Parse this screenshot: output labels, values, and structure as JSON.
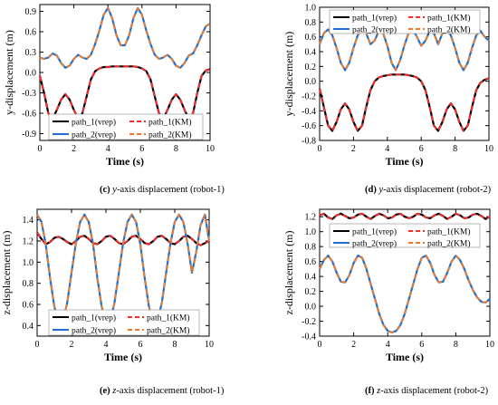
{
  "chart_data": [
    {
      "type": "line",
      "panel": "c",
      "caption_label": "(c)",
      "caption_axis": "y",
      "caption_text": "-axis displacement (robot-1)",
      "xlabel": "Time (s)",
      "ylabel": "y-displacement (m)",
      "xlim": [
        0,
        10
      ],
      "ylim": [
        -1.0,
        1.0
      ],
      "xticks": [
        0,
        2,
        4,
        6,
        8,
        10
      ],
      "yticks": [
        -0.9,
        -0.6,
        -0.3,
        0.0,
        0.3,
        0.6,
        0.9
      ],
      "ytick_labels": [
        "-0.9",
        "-0.6",
        "-0.3",
        "0.0",
        "0.3",
        "0.6",
        "0.9"
      ],
      "legend_position": "bottom-center",
      "legend": [
        "path_1(vrep)",
        "path_1(KM)",
        "path_2(vrep)",
        "path_2(KM)"
      ],
      "x": [
        0,
        0.25,
        0.5,
        0.75,
        1,
        1.25,
        1.5,
        1.75,
        2,
        2.25,
        2.5,
        2.75,
        3,
        3.25,
        3.5,
        3.75,
        4,
        4.25,
        4.5,
        4.75,
        5,
        5.25,
        5.5,
        5.75,
        6,
        6.25,
        6.5,
        6.75,
        7,
        7.25,
        7.5,
        7.75,
        8,
        8.25,
        8.5,
        8.75,
        9,
        9.25,
        9.5,
        9.75,
        10
      ],
      "series": [
        {
          "name": "path_1(vrep)",
          "color": "#000000",
          "style": "solid",
          "values": [
            -0.05,
            -0.3,
            -0.6,
            -0.68,
            -0.55,
            -0.4,
            -0.32,
            -0.4,
            -0.55,
            -0.68,
            -0.6,
            -0.35,
            -0.1,
            0.02,
            0.06,
            0.08,
            0.08,
            0.09,
            0.09,
            0.09,
            0.09,
            0.09,
            0.09,
            0.08,
            0.06,
            0.02,
            -0.1,
            -0.35,
            -0.6,
            -0.68,
            -0.55,
            -0.4,
            -0.32,
            -0.4,
            -0.55,
            -0.68,
            -0.6,
            -0.3,
            -0.05,
            0.03,
            0.05
          ]
        },
        {
          "name": "path_1(KM)",
          "color": "#ff2a2a",
          "style": "dashed",
          "values": [
            -0.05,
            -0.3,
            -0.6,
            -0.68,
            -0.55,
            -0.4,
            -0.32,
            -0.4,
            -0.55,
            -0.68,
            -0.6,
            -0.35,
            -0.1,
            0.02,
            0.06,
            0.08,
            0.08,
            0.09,
            0.09,
            0.09,
            0.09,
            0.09,
            0.09,
            0.08,
            0.06,
            0.02,
            -0.1,
            -0.35,
            -0.6,
            -0.68,
            -0.55,
            -0.4,
            -0.32,
            -0.4,
            -0.55,
            -0.68,
            -0.6,
            -0.3,
            -0.05,
            0.03,
            0.05
          ]
        },
        {
          "name": "path_2(vrep)",
          "color": "#1f6fd0",
          "style": "solid",
          "values": [
            0.22,
            0.2,
            0.22,
            0.28,
            0.25,
            0.14,
            0.07,
            0.1,
            0.2,
            0.26,
            0.22,
            0.2,
            0.26,
            0.42,
            0.62,
            0.85,
            0.95,
            0.8,
            0.55,
            0.4,
            0.4,
            0.55,
            0.8,
            0.95,
            0.85,
            0.62,
            0.42,
            0.26,
            0.2,
            0.22,
            0.26,
            0.2,
            0.1,
            0.07,
            0.14,
            0.25,
            0.28,
            0.4,
            0.55,
            0.68,
            0.72
          ]
        },
        {
          "name": "path_2(KM)",
          "color": "#f07a28",
          "style": "dashed",
          "values": [
            0.22,
            0.2,
            0.22,
            0.28,
            0.25,
            0.14,
            0.07,
            0.1,
            0.2,
            0.26,
            0.22,
            0.2,
            0.26,
            0.42,
            0.62,
            0.85,
            0.95,
            0.8,
            0.55,
            0.4,
            0.4,
            0.55,
            0.8,
            0.95,
            0.85,
            0.62,
            0.42,
            0.26,
            0.2,
            0.22,
            0.26,
            0.2,
            0.1,
            0.07,
            0.14,
            0.25,
            0.28,
            0.4,
            0.55,
            0.68,
            0.72
          ]
        }
      ]
    },
    {
      "type": "line",
      "panel": "d",
      "caption_label": "(d)",
      "caption_axis": "y",
      "caption_text": "-axis displacement (robot-2)",
      "xlabel": "Time (s)",
      "ylabel": "y-displacement (m)",
      "xlim": [
        0,
        10
      ],
      "ylim": [
        -0.8,
        1.0
      ],
      "xticks": [
        0,
        2,
        4,
        6,
        8,
        10
      ],
      "yticks": [
        -0.8,
        -0.6,
        -0.4,
        -0.2,
        0.0,
        0.2,
        0.4,
        0.6,
        0.8,
        1.0
      ],
      "ytick_labels": [
        "-0.8",
        "-0.6",
        "-0.4",
        "-0.2",
        "0.0",
        "0.2",
        "0.4",
        "0.6",
        "0.8",
        "1.0"
      ],
      "legend_position": "top-center",
      "legend": [
        "path_1(vrep)",
        "path_1(KM)",
        "path_2(vrep)",
        "path_2(KM)"
      ],
      "x": [
        0,
        0.25,
        0.5,
        0.75,
        1,
        1.25,
        1.5,
        1.75,
        2,
        2.25,
        2.5,
        2.75,
        3,
        3.25,
        3.5,
        3.75,
        4,
        4.25,
        4.5,
        4.75,
        5,
        5.25,
        5.5,
        5.75,
        6,
        6.25,
        6.5,
        6.75,
        7,
        7.25,
        7.5,
        7.75,
        8,
        8.25,
        8.5,
        8.75,
        9,
        9.25,
        9.5,
        9.75,
        10
      ],
      "series": [
        {
          "name": "path_1(vrep)",
          "color": "#000000",
          "style": "solid",
          "values": [
            -0.1,
            -0.35,
            -0.6,
            -0.67,
            -0.55,
            -0.38,
            -0.3,
            -0.38,
            -0.55,
            -0.67,
            -0.6,
            -0.35,
            -0.12,
            0.0,
            0.05,
            0.07,
            0.08,
            0.09,
            0.09,
            0.09,
            0.09,
            0.08,
            0.07,
            0.05,
            0.0,
            -0.12,
            -0.35,
            -0.6,
            -0.67,
            -0.55,
            -0.38,
            -0.3,
            -0.38,
            -0.55,
            -0.67,
            -0.6,
            -0.35,
            -0.12,
            -0.02,
            0.02,
            0.04
          ]
        },
        {
          "name": "path_1(KM)",
          "color": "#ff2a2a",
          "style": "dashed",
          "values": [
            -0.1,
            -0.35,
            -0.6,
            -0.67,
            -0.55,
            -0.38,
            -0.3,
            -0.38,
            -0.55,
            -0.67,
            -0.6,
            -0.35,
            -0.12,
            0.0,
            0.05,
            0.07,
            0.08,
            0.09,
            0.09,
            0.09,
            0.09,
            0.08,
            0.07,
            0.05,
            0.0,
            -0.12,
            -0.35,
            -0.6,
            -0.67,
            -0.55,
            -0.38,
            -0.3,
            -0.38,
            -0.55,
            -0.67,
            -0.6,
            -0.35,
            -0.12,
            -0.02,
            0.02,
            0.04
          ]
        },
        {
          "name": "path_2(vrep)",
          "color": "#1f6fd0",
          "style": "solid",
          "values": [
            0.5,
            0.65,
            0.7,
            0.62,
            0.45,
            0.25,
            0.15,
            0.25,
            0.45,
            0.62,
            0.7,
            0.65,
            0.5,
            0.55,
            0.68,
            0.65,
            0.48,
            0.25,
            0.15,
            0.28,
            0.48,
            0.65,
            0.7,
            0.6,
            0.48,
            0.55,
            0.68,
            0.65,
            0.5,
            0.65,
            0.7,
            0.62,
            0.45,
            0.25,
            0.15,
            0.25,
            0.45,
            0.62,
            0.68,
            0.6,
            0.55
          ]
        },
        {
          "name": "path_2(KM)",
          "color": "#f07a28",
          "style": "dashed",
          "values": [
            0.5,
            0.65,
            0.7,
            0.62,
            0.45,
            0.25,
            0.15,
            0.25,
            0.45,
            0.62,
            0.7,
            0.65,
            0.5,
            0.55,
            0.68,
            0.65,
            0.48,
            0.25,
            0.15,
            0.28,
            0.48,
            0.65,
            0.7,
            0.6,
            0.48,
            0.55,
            0.68,
            0.65,
            0.5,
            0.65,
            0.7,
            0.62,
            0.45,
            0.25,
            0.15,
            0.25,
            0.45,
            0.62,
            0.68,
            0.6,
            0.55
          ]
        }
      ]
    },
    {
      "type": "line",
      "panel": "e",
      "caption_label": "(e)",
      "caption_axis": "z",
      "caption_text": "-axis displacement (robot-1)",
      "xlabel": "Time (s)",
      "ylabel": "z-displacement (m)",
      "xlim": [
        0,
        10
      ],
      "ylim": [
        0.3,
        1.5
      ],
      "xticks": [
        0,
        2,
        4,
        6,
        8,
        10
      ],
      "yticks": [
        0.4,
        0.6,
        0.8,
        1.0,
        1.2,
        1.4
      ],
      "ytick_labels": [
        "0.4",
        "0.6",
        "0.8",
        "1.0",
        "1.2",
        "1.4"
      ],
      "legend_position": "bottom-center",
      "legend": [
        "path_1(vrep)",
        "path_1(KM)",
        "path_2(vrep)",
        "path_2(KM)"
      ],
      "x": [
        0,
        0.25,
        0.5,
        0.75,
        1,
        1.25,
        1.5,
        1.75,
        2,
        2.25,
        2.5,
        2.75,
        3,
        3.25,
        3.5,
        3.75,
        4,
        4.25,
        4.5,
        4.75,
        5,
        5.25,
        5.5,
        5.75,
        6,
        6.25,
        6.5,
        6.75,
        7,
        7.25,
        7.5,
        7.75,
        8,
        8.25,
        8.5,
        8.75,
        9,
        9.25,
        9.5,
        9.75,
        10
      ],
      "series": [
        {
          "name": "path_1(vrep)",
          "color": "#000000",
          "style": "solid",
          "values": [
            1.28,
            1.22,
            1.17,
            1.19,
            1.23,
            1.24,
            1.22,
            1.19,
            1.17,
            1.2,
            1.24,
            1.25,
            1.22,
            1.18,
            1.17,
            1.2,
            1.24,
            1.25,
            1.22,
            1.18,
            1.17,
            1.2,
            1.24,
            1.25,
            1.22,
            1.18,
            1.17,
            1.2,
            1.24,
            1.25,
            1.22,
            1.18,
            1.17,
            1.2,
            1.24,
            1.25,
            1.22,
            1.18,
            1.16,
            1.18,
            1.2
          ]
        },
        {
          "name": "path_1(KM)",
          "color": "#ff2a2a",
          "style": "dashed",
          "values": [
            1.28,
            1.22,
            1.17,
            1.19,
            1.23,
            1.24,
            1.22,
            1.19,
            1.17,
            1.2,
            1.24,
            1.25,
            1.22,
            1.18,
            1.17,
            1.2,
            1.24,
            1.25,
            1.22,
            1.18,
            1.17,
            1.2,
            1.24,
            1.25,
            1.22,
            1.18,
            1.17,
            1.2,
            1.24,
            1.25,
            1.22,
            1.18,
            1.17,
            1.2,
            1.24,
            1.25,
            1.22,
            1.18,
            1.16,
            1.18,
            1.2
          ]
        },
        {
          "name": "path_2(vrep)",
          "color": "#1f6fd0",
          "style": "solid",
          "values": [
            1.45,
            1.38,
            1.17,
            0.85,
            0.58,
            0.43,
            0.44,
            0.62,
            0.9,
            1.18,
            1.38,
            1.45,
            1.38,
            1.17,
            0.85,
            0.58,
            0.43,
            0.44,
            0.62,
            0.9,
            1.18,
            1.38,
            1.45,
            1.38,
            1.17,
            0.85,
            0.58,
            0.43,
            0.44,
            0.62,
            0.9,
            1.18,
            1.38,
            1.45,
            1.38,
            1.17,
            0.9,
            1.1,
            1.35,
            1.45,
            1.2
          ]
        },
        {
          "name": "path_2(KM)",
          "color": "#f07a28",
          "style": "dashed",
          "values": [
            1.45,
            1.38,
            1.17,
            0.85,
            0.58,
            0.43,
            0.44,
            0.62,
            0.9,
            1.18,
            1.38,
            1.45,
            1.38,
            1.17,
            0.85,
            0.58,
            0.43,
            0.44,
            0.62,
            0.9,
            1.18,
            1.38,
            1.45,
            1.38,
            1.17,
            0.85,
            0.58,
            0.43,
            0.44,
            0.62,
            0.9,
            1.18,
            1.38,
            1.45,
            1.38,
            1.17,
            0.9,
            1.1,
            1.35,
            1.45,
            1.2
          ]
        }
      ]
    },
    {
      "type": "line",
      "panel": "f",
      "caption_label": "(f)",
      "caption_axis": "z",
      "caption_text": "-axis displacement (robot-2)",
      "xlabel": "Time (s)",
      "ylabel": "z-displacement (m)",
      "xlim": [
        0,
        10
      ],
      "ylim": [
        -0.4,
        1.3
      ],
      "xticks": [
        0,
        2,
        4,
        6,
        8,
        10
      ],
      "yticks": [
        -0.4,
        -0.2,
        0.0,
        0.2,
        0.4,
        0.6,
        0.8,
        1.0,
        1.2
      ],
      "ytick_labels": [
        "-0.4",
        "-0.2",
        "0.0",
        "0.2",
        "0.4",
        "0.6",
        "0.8",
        "1.0",
        "1.2"
      ],
      "legend_position": "top-center",
      "legend": [
        "path_1(vrep)",
        "path_1(KM)",
        "path_2(vrep)",
        "path_2(KM)"
      ],
      "x": [
        0,
        0.25,
        0.5,
        0.75,
        1,
        1.25,
        1.5,
        1.75,
        2,
        2.25,
        2.5,
        2.75,
        3,
        3.25,
        3.5,
        3.75,
        4,
        4.25,
        4.5,
        4.75,
        5,
        5.25,
        5.5,
        5.75,
        6,
        6.25,
        6.5,
        6.75,
        7,
        7.25,
        7.5,
        7.75,
        8,
        8.25,
        8.5,
        8.75,
        9,
        9.25,
        9.5,
        9.75,
        10
      ],
      "series": [
        {
          "name": "path_1(vrep)",
          "color": "#000000",
          "style": "solid",
          "values": [
            1.22,
            1.24,
            1.19,
            1.17,
            1.22,
            1.24,
            1.21,
            1.18,
            1.19,
            1.23,
            1.24,
            1.2,
            1.17,
            1.21,
            1.24,
            1.22,
            1.18,
            1.19,
            1.23,
            1.24,
            1.2,
            1.18,
            1.2,
            1.24,
            1.23,
            1.19,
            1.18,
            1.22,
            1.24,
            1.21,
            1.17,
            1.2,
            1.24,
            1.22,
            1.18,
            1.19,
            1.23,
            1.24,
            1.21,
            1.17,
            1.2
          ]
        },
        {
          "name": "path_1(KM)",
          "color": "#ff2a2a",
          "style": "dashed",
          "values": [
            1.22,
            1.24,
            1.19,
            1.17,
            1.22,
            1.24,
            1.21,
            1.18,
            1.19,
            1.23,
            1.24,
            1.2,
            1.17,
            1.21,
            1.24,
            1.22,
            1.18,
            1.19,
            1.23,
            1.24,
            1.2,
            1.18,
            1.2,
            1.24,
            1.23,
            1.19,
            1.18,
            1.22,
            1.24,
            1.21,
            1.17,
            1.2,
            1.24,
            1.22,
            1.18,
            1.19,
            1.23,
            1.24,
            1.21,
            1.17,
            1.2
          ]
        },
        {
          "name": "path_2(vrep)",
          "color": "#1f6fd0",
          "style": "solid",
          "values": [
            0.5,
            0.62,
            0.68,
            0.6,
            0.45,
            0.33,
            0.32,
            0.42,
            0.58,
            0.68,
            0.65,
            0.5,
            0.3,
            0.1,
            -0.1,
            -0.25,
            -0.33,
            -0.35,
            -0.33,
            -0.25,
            -0.1,
            0.1,
            0.3,
            0.5,
            0.65,
            0.68,
            0.58,
            0.42,
            0.32,
            0.33,
            0.45,
            0.6,
            0.68,
            0.62,
            0.5,
            0.35,
            0.22,
            0.12,
            0.06,
            0.05,
            0.1
          ]
        },
        {
          "name": "path_2(KM)",
          "color": "#f07a28",
          "style": "dashed",
          "values": [
            0.5,
            0.62,
            0.68,
            0.6,
            0.45,
            0.33,
            0.32,
            0.42,
            0.58,
            0.68,
            0.65,
            0.5,
            0.3,
            0.1,
            -0.1,
            -0.25,
            -0.33,
            -0.35,
            -0.33,
            -0.25,
            -0.1,
            0.1,
            0.3,
            0.5,
            0.65,
            0.68,
            0.58,
            0.42,
            0.32,
            0.33,
            0.45,
            0.6,
            0.68,
            0.62,
            0.5,
            0.35,
            0.22,
            0.12,
            0.06,
            0.05,
            0.1
          ]
        }
      ]
    }
  ]
}
